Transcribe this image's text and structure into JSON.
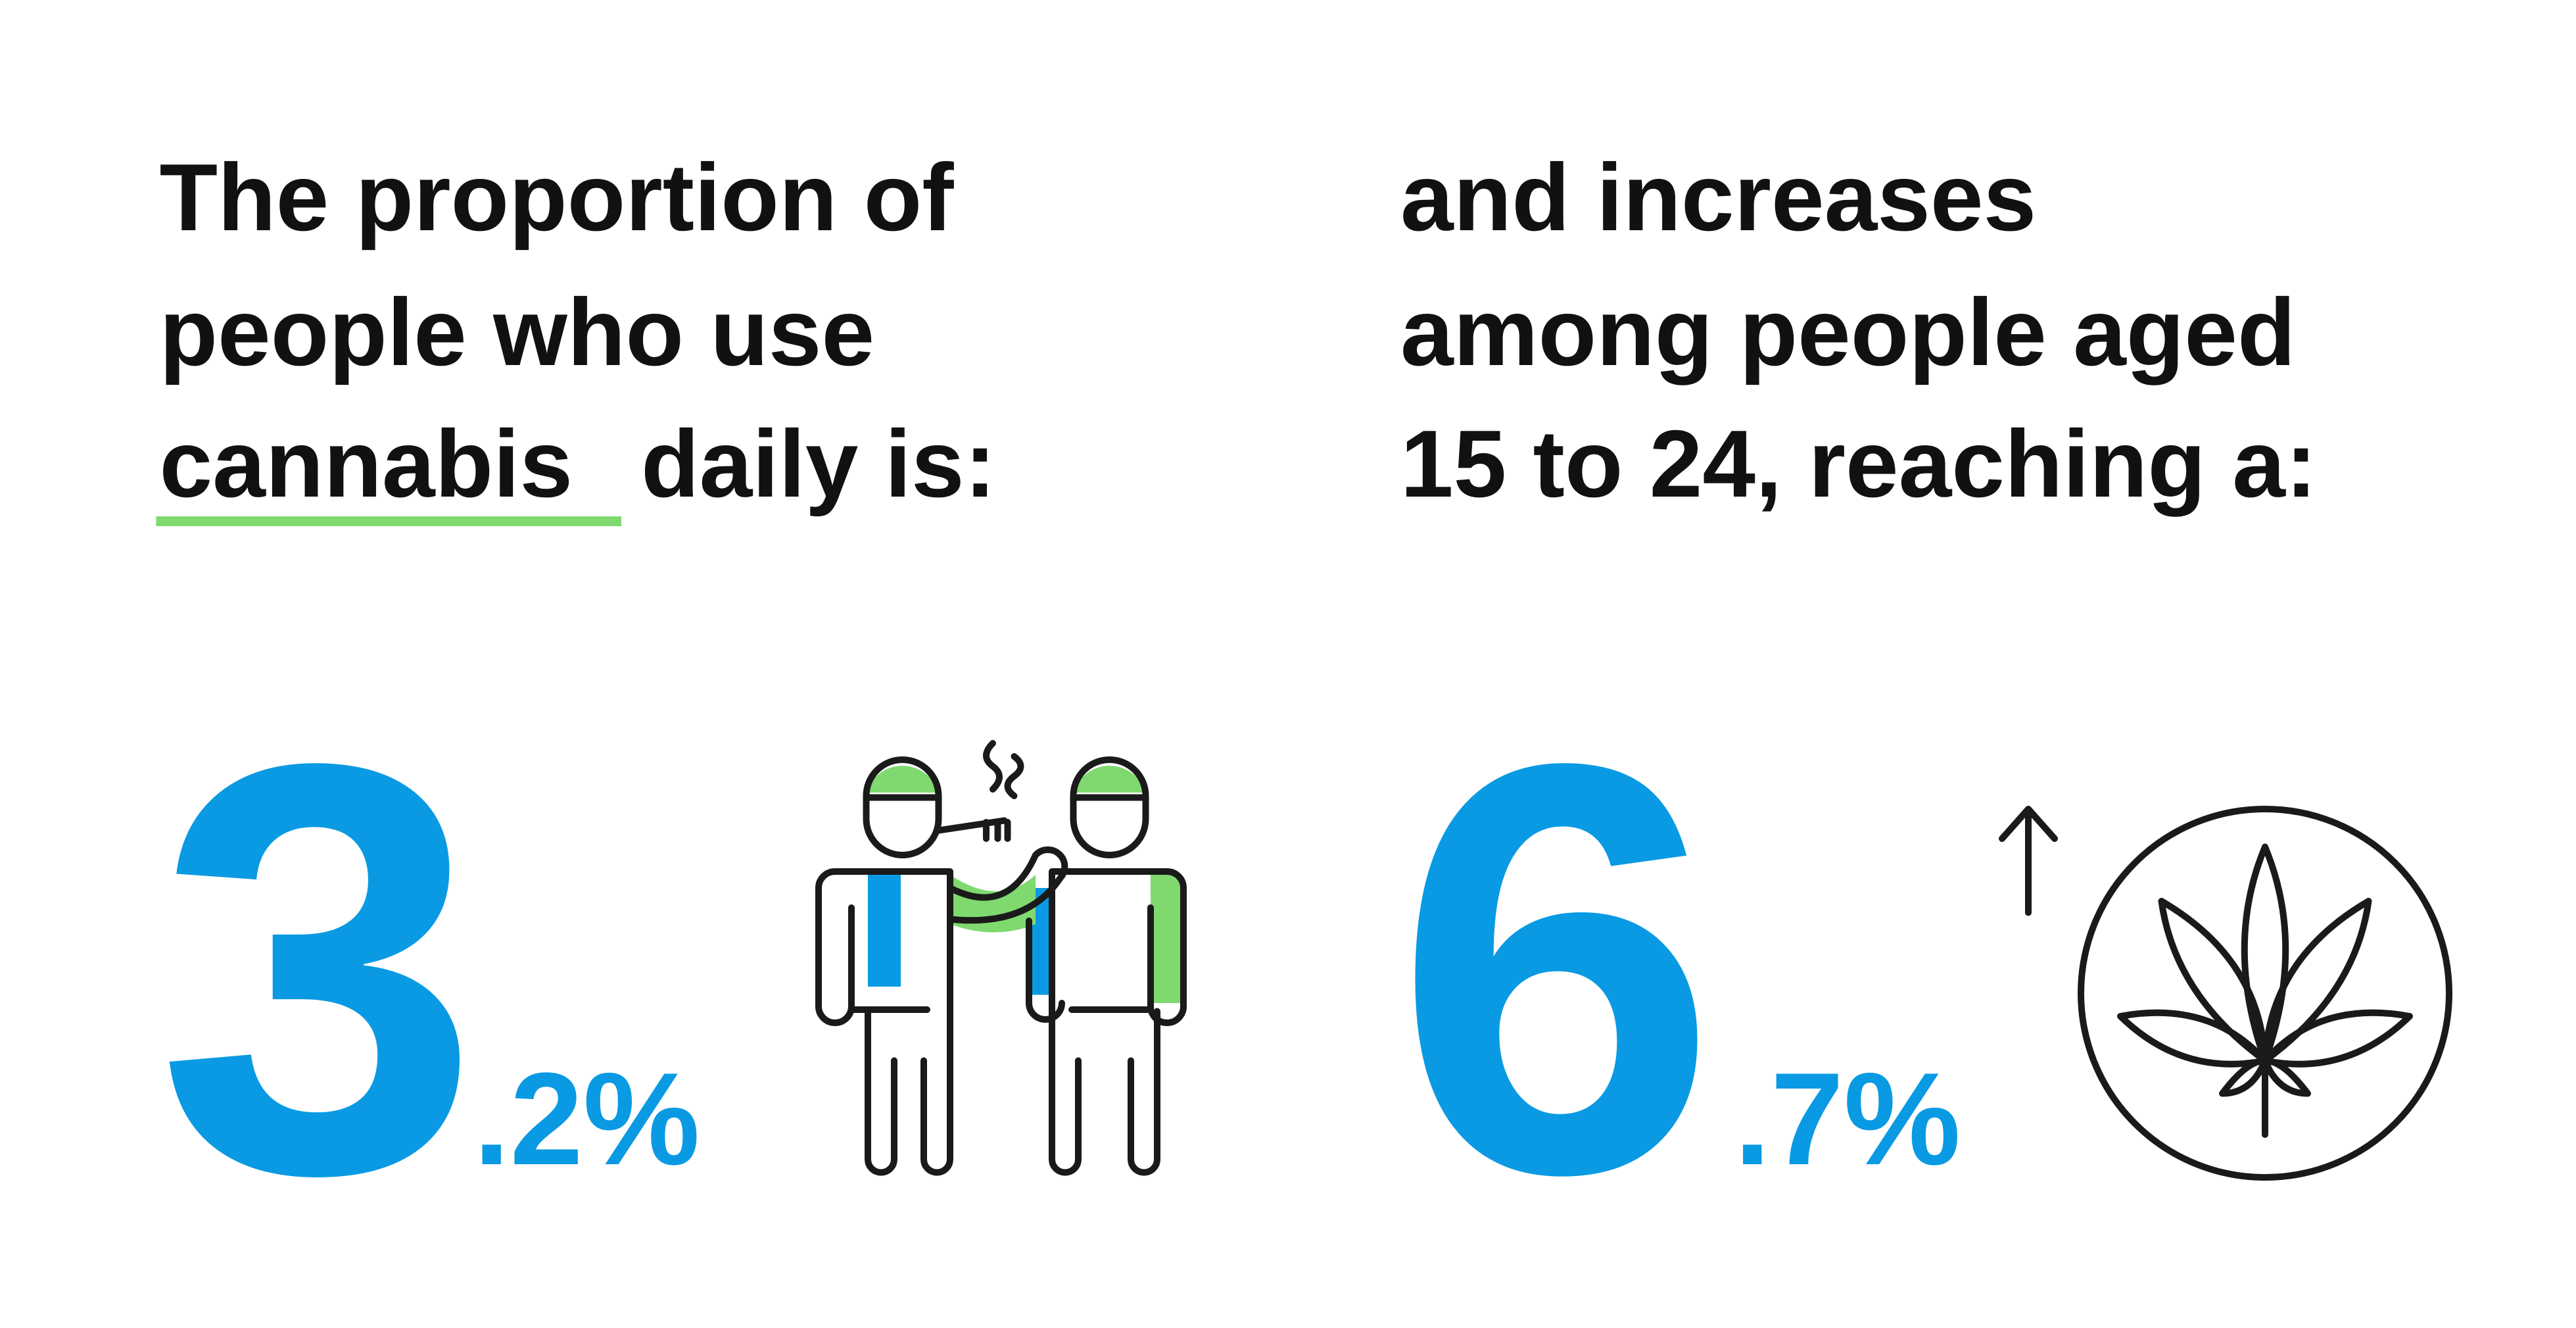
{
  "left": {
    "heading_lines": [
      "The proportion of",
      "people who use"
    ],
    "highlight": "cannabis",
    "heading_end": "daily is:",
    "stat_whole": "3",
    "stat_fraction": ".2%"
  },
  "right": {
    "heading_lines": [
      "and increases",
      "among people aged",
      "15 to 24, reaching a:"
    ],
    "stat_whole": "6",
    "stat_fraction": ".7%"
  }
}
